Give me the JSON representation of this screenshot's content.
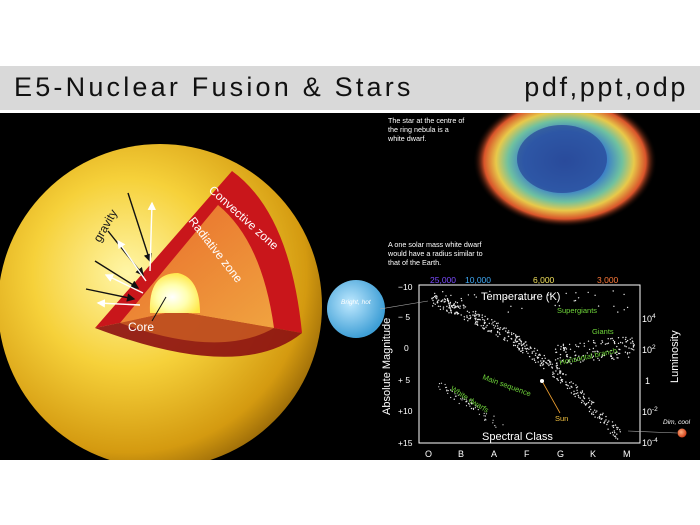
{
  "header": {
    "title": "E5-Nuclear Fusion & Stars",
    "formats": "pdf,ppt,odp"
  },
  "sun_diagram": {
    "labels": {
      "gravity": "gravity",
      "convective_zone": "Convective zone",
      "radiative_zone": "Radiative zone",
      "core": "Core"
    }
  },
  "ring_nebula": {
    "caption_lines": [
      "The star at the centre of",
      "the ring nebula is a",
      "white dwarf."
    ]
  },
  "white_dwarf_note": {
    "lines": [
      "A one solar mass white dwarf",
      "would have a radius similar to",
      "that of the Earth."
    ]
  },
  "hr_diagram": {
    "top_axis_title": "Temperature (K)",
    "temperature_ticks": [
      {
        "label": "25,000",
        "color": "#7b4cff"
      },
      {
        "label": "10,000",
        "color": "#3fa9f5"
      },
      {
        "label": "6,000",
        "color": "#f2e15c"
      },
      {
        "label": "3,000",
        "color": "#ff7a3a"
      }
    ],
    "left_axis_title": "Absolute Magnitude",
    "magnitude_ticks": [
      "−10",
      "− 5",
      "0",
      "+ 5",
      "+10",
      "+15"
    ],
    "right_axis_title": "Luminosity",
    "luminosity_ticks": [
      {
        "base": "10",
        "exp": "4"
      },
      {
        "base": "10",
        "exp": "2"
      },
      {
        "base": "1",
        "exp": ""
      },
      {
        "base": "10",
        "exp": "-2"
      },
      {
        "base": "10",
        "exp": "-4"
      }
    ],
    "bottom_axis_title": "Spectral Class",
    "spectral_classes": [
      "O",
      "B",
      "A",
      "F",
      "G",
      "K",
      "M"
    ],
    "regions": {
      "supergiants": "Supergiants",
      "giants": "Giants",
      "horizontal_branch": "Horizontal branch",
      "main_sequence": "Main sequence",
      "white_dwarfs": "White dwarfs",
      "sun": "Sun"
    },
    "extremes": {
      "bright_hot": "Bright, hot",
      "dim_cool": "Dim, cool"
    }
  }
}
